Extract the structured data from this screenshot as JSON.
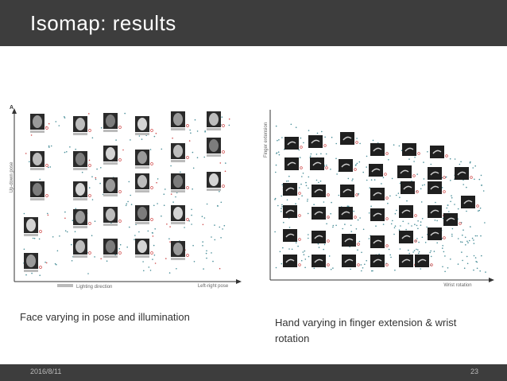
{
  "slide": {
    "title": "Isomap: results",
    "footer_date": "2016/8/11",
    "page_number": "23"
  },
  "left_figure": {
    "corner_label": "A",
    "y_axis_label": "Up-down pose",
    "x_axis_label": "Left-right pose",
    "legend_label": "Lighting direction",
    "caption": "Face varying in pose and illumination"
  },
  "right_figure": {
    "y_axis_label": "Finger extension",
    "x_axis_label": "Wrist rotation",
    "caption": "Hand varying in finger extension & wrist rotation"
  },
  "colors": {
    "title_bar": "#3d3d3d",
    "dot_teal": "#4a8f99",
    "dot_red": "#d05050"
  }
}
